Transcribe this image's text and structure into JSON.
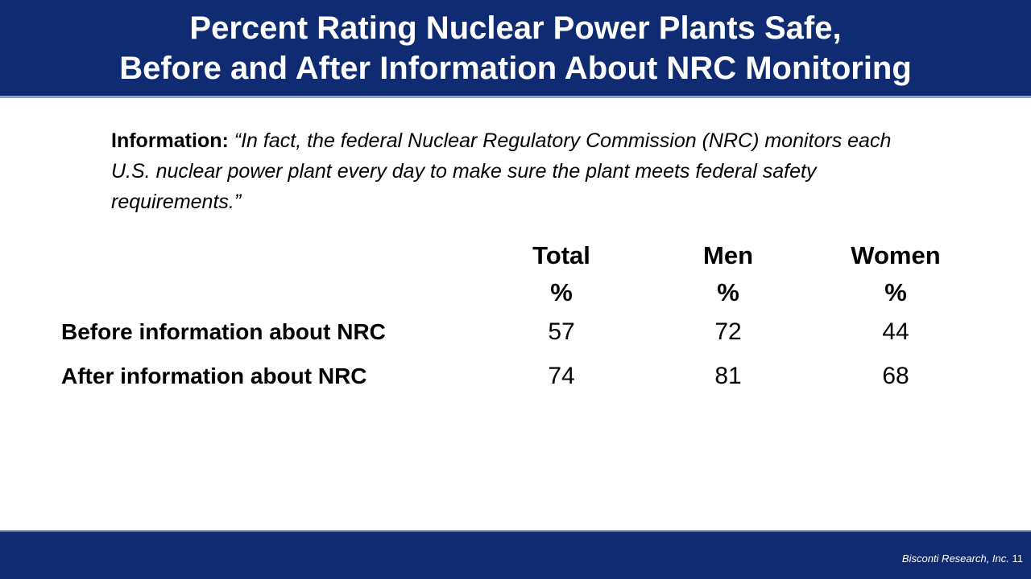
{
  "title": {
    "line1": "Percent Rating Nuclear Power Plants Safe,",
    "line2": "Before and After Information About NRC Monitoring"
  },
  "info": {
    "label": "Information:",
    "quote": "“In fact, the federal Nuclear Regulatory Commission (NRC) monitors each U.S. nuclear power plant every day to make sure the plant meets federal safety requirements.”"
  },
  "table": {
    "columns": [
      {
        "name": "Total",
        "unit": "%"
      },
      {
        "name": "Men",
        "unit": "%"
      },
      {
        "name": "Women",
        "unit": "%"
      }
    ],
    "rows": [
      {
        "label": "Before information about NRC",
        "values": [
          "57",
          "72",
          "44"
        ]
      },
      {
        "label": "After information about NRC",
        "values": [
          "74",
          "81",
          "68"
        ]
      }
    ]
  },
  "footer": {
    "organization": "Bisconti Research, Inc.",
    "page_number": "11"
  },
  "colors": {
    "header_bg": "#0f2b72",
    "accent_border": "#8da0cc"
  }
}
